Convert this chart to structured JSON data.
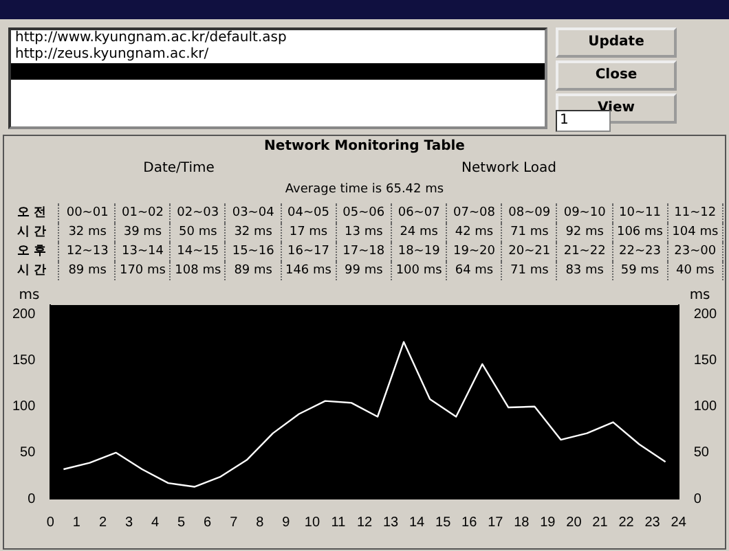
{
  "chart_data": {
    "type": "line",
    "title": "Network Monitoring Table",
    "xlim": [
      0,
      24
    ],
    "xticks": [
      0,
      1,
      2,
      3,
      4,
      5,
      6,
      7,
      8,
      9,
      10,
      11,
      12,
      13,
      14,
      15,
      16,
      17,
      18,
      19,
      20,
      21,
      22,
      23,
      24
    ],
    "ylim": [
      0,
      210
    ],
    "yticks": [
      0,
      50,
      100,
      150,
      200
    ],
    "y2lim": [
      0,
      210
    ],
    "y2ticks": [
      0,
      50,
      100,
      150,
      200
    ],
    "ylabel": "ms",
    "y2label": "ms",
    "legend": false,
    "marker": "none",
    "line_style": "solid",
    "series": [
      {
        "color": "#ffffff",
        "x": [
          0.5,
          1.5,
          2.5,
          3.5,
          4.5,
          5.5,
          6.5,
          7.5,
          8.5,
          9.5,
          10.5,
          11.5,
          12.5,
          13.5,
          14.5,
          15.5,
          16.5,
          17.5,
          18.5,
          19.5,
          20.5,
          21.5,
          22.5,
          23.5
        ],
        "values": [
          32,
          39,
          50,
          32,
          17,
          13,
          24,
          42,
          71,
          92,
          106,
          104,
          89,
          170,
          108,
          89,
          146,
          99,
          100,
          64,
          71,
          83,
          59,
          40
        ]
      }
    ],
    "annotations": [
      "http://www.kyungnam.ac.kr/default.asp",
      "http://zeus.kyungnam.ac.kr/",
      "Update",
      "Close",
      "View",
      "1",
      "Date/Time",
      "Network Load",
      "Average time is 65.42 ms",
      "오 전",
      "시 간",
      "오 후",
      "시 간",
      "00~01",
      "01~02",
      "02~03",
      "03~04",
      "04~05",
      "05~06",
      "06~07",
      "07~08",
      "08~09",
      "09~10",
      "10~11",
      "11~12",
      "32 ms",
      "39 ms",
      "50 ms",
      "32 ms",
      "17 ms",
      "13 ms",
      "24 ms",
      "42 ms",
      "71 ms",
      "92 ms",
      "106 ms",
      "104 ms",
      "12~13",
      "13~14",
      "14~15",
      "15~16",
      "16~17",
      "17~18",
      "18~19",
      "19~20",
      "20~21",
      "21~22",
      "22~23",
      "23~00",
      "89 ms",
      "170 ms",
      "108 ms",
      "89 ms",
      "146 ms",
      "99 ms",
      "100 ms",
      "64 ms",
      "71 ms",
      "83 ms",
      "59 ms",
      "40 ms"
    ]
  }
}
